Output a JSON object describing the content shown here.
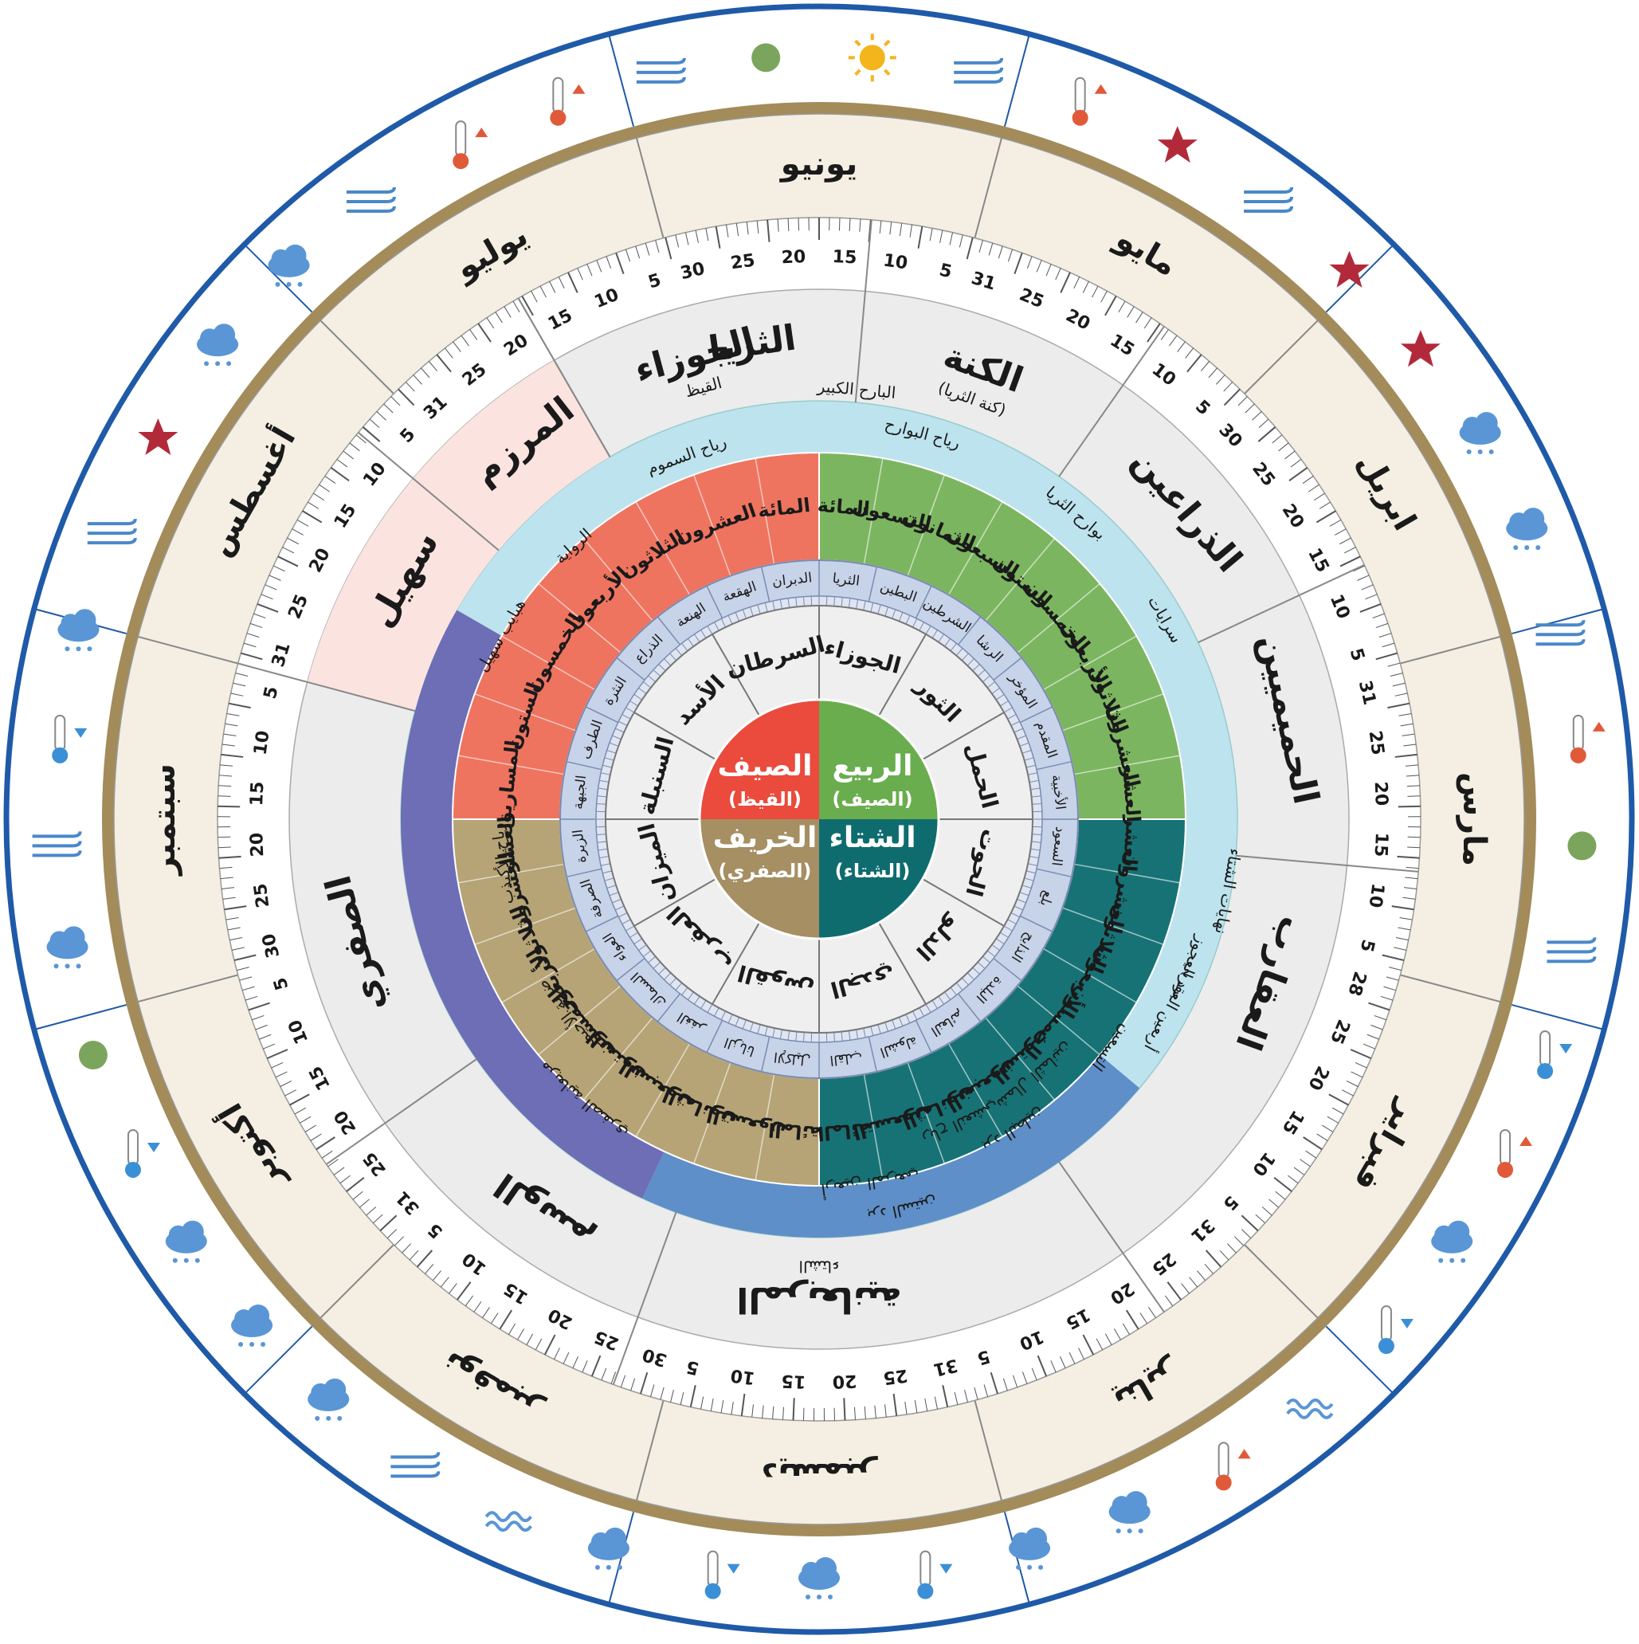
{
  "months": [
    {
      "name": "يونيو",
      "days": [
        30,
        25,
        20,
        15,
        10,
        5
      ]
    },
    {
      "name": "مايو",
      "days": [
        31,
        25,
        20,
        15,
        10,
        5
      ]
    },
    {
      "name": "ابريل",
      "days": [
        30,
        25,
        20,
        15,
        10,
        5
      ]
    },
    {
      "name": "مارس",
      "days": [
        31,
        25,
        20,
        15,
        10,
        5
      ]
    },
    {
      "name": "فبراير",
      "days": [
        28,
        25,
        20,
        15,
        10,
        5
      ]
    },
    {
      "name": "يناير",
      "days": [
        31,
        25,
        20,
        15,
        10,
        5
      ]
    },
    {
      "name": "ديسمبر",
      "days": [
        31,
        25,
        20,
        15,
        10,
        5
      ]
    },
    {
      "name": "نوفمبر",
      "days": [
        30,
        25,
        20,
        15,
        10,
        5
      ]
    },
    {
      "name": "أكتوبر",
      "days": [
        31,
        25,
        20,
        15,
        10,
        5
      ]
    },
    {
      "name": "سبتمبر",
      "days": [
        30,
        25,
        20,
        15,
        10,
        5
      ]
    },
    {
      "name": "أغسطس",
      "days": [
        31,
        25,
        20,
        15,
        10,
        5
      ]
    },
    {
      "name": "يوليو",
      "days": [
        31,
        25,
        20,
        15,
        10,
        5
      ]
    }
  ],
  "seasons": [
    {
      "name": "الثريا",
      "note": ""
    },
    {
      "name": "الكنة",
      "note": "(كنة الثريا)"
    },
    {
      "name": "الذراعين",
      "note": ""
    },
    {
      "name": "الحميميين",
      "note": ""
    },
    {
      "name": "العقارب",
      "note": ""
    },
    {
      "name": "المربعانية",
      "note": "الشتاء"
    },
    {
      "name": "الوسم",
      "note": ""
    },
    {
      "name": "الصفري",
      "note": ""
    },
    {
      "name": "سهيل",
      "note": ""
    },
    {
      "name": "المرزم",
      "note": ""
    },
    {
      "name": "الجوزاء",
      "note": "القيظ"
    }
  ],
  "winds": [
    "البارح الكبير",
    "رياح البوارح",
    "رياح السموم",
    "الرواية",
    "هبايب سهيل",
    "رياح الأكيذب",
    "ضربة الأحيمر",
    "مربعانية الصفري",
    "أربعين المربعي",
    "برد الستين",
    "رياح النعشي",
    "برد البطين",
    "شمال الثمانين",
    "التسعين",
    "أربعين العقربي",
    "برد العجوز",
    "نهايات الشتاء",
    "سرايات",
    "بوارح الثريا"
  ],
  "counts": {
    "spring": [
      "العشر",
      "العشرون",
      "الثلاثون",
      "الأربعون",
      "الخمسون",
      "الستون",
      "السبعون",
      "الثمانون",
      "التسعون",
      "المائة"
    ],
    "summer": [
      "المائة",
      "العشرون",
      "الثلاثون",
      "الأربعون",
      "الخمسون",
      "الستون",
      "المساريق"
    ],
    "autumn": [
      "العشر",
      "العشرون",
      "الثلاثون",
      "الأربعون",
      "الخمسون",
      "الستون",
      "السبعون",
      "الثمانون",
      "التسعون",
      "المائة"
    ],
    "winter": [
      "العشر",
      "العشرون",
      "الثلاثون",
      "الأربعون",
      "الخمسون",
      "الستون",
      "السبعون",
      "الثمانون",
      "التسعون",
      "المائة"
    ]
  },
  "stars": [
    "الثريا",
    "البطين",
    "الشرطين",
    "الرشا",
    "المؤخر",
    "المقدم",
    "الأخبية",
    "السعود",
    "بلع",
    "الذابح",
    "البلدة",
    "النعائم",
    "الشولة",
    "القلب",
    "الإكليل",
    "الزبانا",
    "الغفر",
    "السماك",
    "العواء",
    "الصرفة",
    "الزبرة",
    "الجبهة",
    "الطرف",
    "النثرة",
    "الذراع",
    "الهنعة",
    "الهقعة",
    "الدبران"
  ],
  "zodiac": [
    "الجوزاء",
    "الثور",
    "الحمل",
    "الحوت",
    "الدلو",
    "الجدي",
    "القوس",
    "العقرب",
    "الميزان",
    "السنبلة",
    "الأسد",
    "السرطان"
  ],
  "center": [
    {
      "name": "الربيع",
      "sub": "(الصيف)",
      "color": "#6aad4e"
    },
    {
      "name": "الشتاء",
      "sub": "(الشتاء)",
      "color": "#0f6c6e"
    },
    {
      "name": "الخريف",
      "sub": "(الصفري)",
      "color": "#a58f63"
    },
    {
      "name": "الصيف",
      "sub": "(القيظ)",
      "color": "#ea4b3c"
    }
  ],
  "colors": {
    "outer_ring": "#a38b5a",
    "month_band": "#f4efe2",
    "season_band": "#ececec",
    "wind_band": "#bde3ee",
    "star_band": "#c7d3e8",
    "zodiac_bg": "#efefef",
    "spring": "#7cb560",
    "winter": "#177275",
    "autumn": "#b6a476",
    "summer": "#ee7460",
    "autumn_outer": "#6d6eb5",
    "winter_outer": "#5f8fc8"
  },
  "weather_icons": [
    "sun-icon",
    "wind-icon",
    "thermometer-up-icon",
    "star-icon",
    "wind-icon",
    "star-icon",
    "star-icon",
    "cloud-sun-icon",
    "cloud-sun-icon",
    "wind-icon",
    "thermometer-up-icon",
    "seasons-change-icon",
    "wind-icon",
    "thermometer-down-icon",
    "thermometer-up-icon",
    "thunder-cloud-icon",
    "thermometer-down-icon",
    "waves-icon",
    "thermometer-up-icon",
    "snow-cloud-icon",
    "cloud-icon",
    "thermometer-down-icon",
    "snowflake-icon",
    "thermometer-down-icon",
    "rain-cloud-icon",
    "waves-icon",
    "wind-icon",
    "rain-icon",
    "rain-cloud-icon",
    "rain-icon",
    "thermometer-down-icon",
    "leaf-icon",
    "rain-icon",
    "wind-icon",
    "thermometer-down-icon",
    "rain-icon",
    "wind-icon",
    "star-icon",
    "rain-icon",
    "cloud-sun-icon",
    "wind-icon",
    "thermometer-up-icon",
    "thermometer-up-icon",
    "wind-icon",
    "plant-icon"
  ]
}
